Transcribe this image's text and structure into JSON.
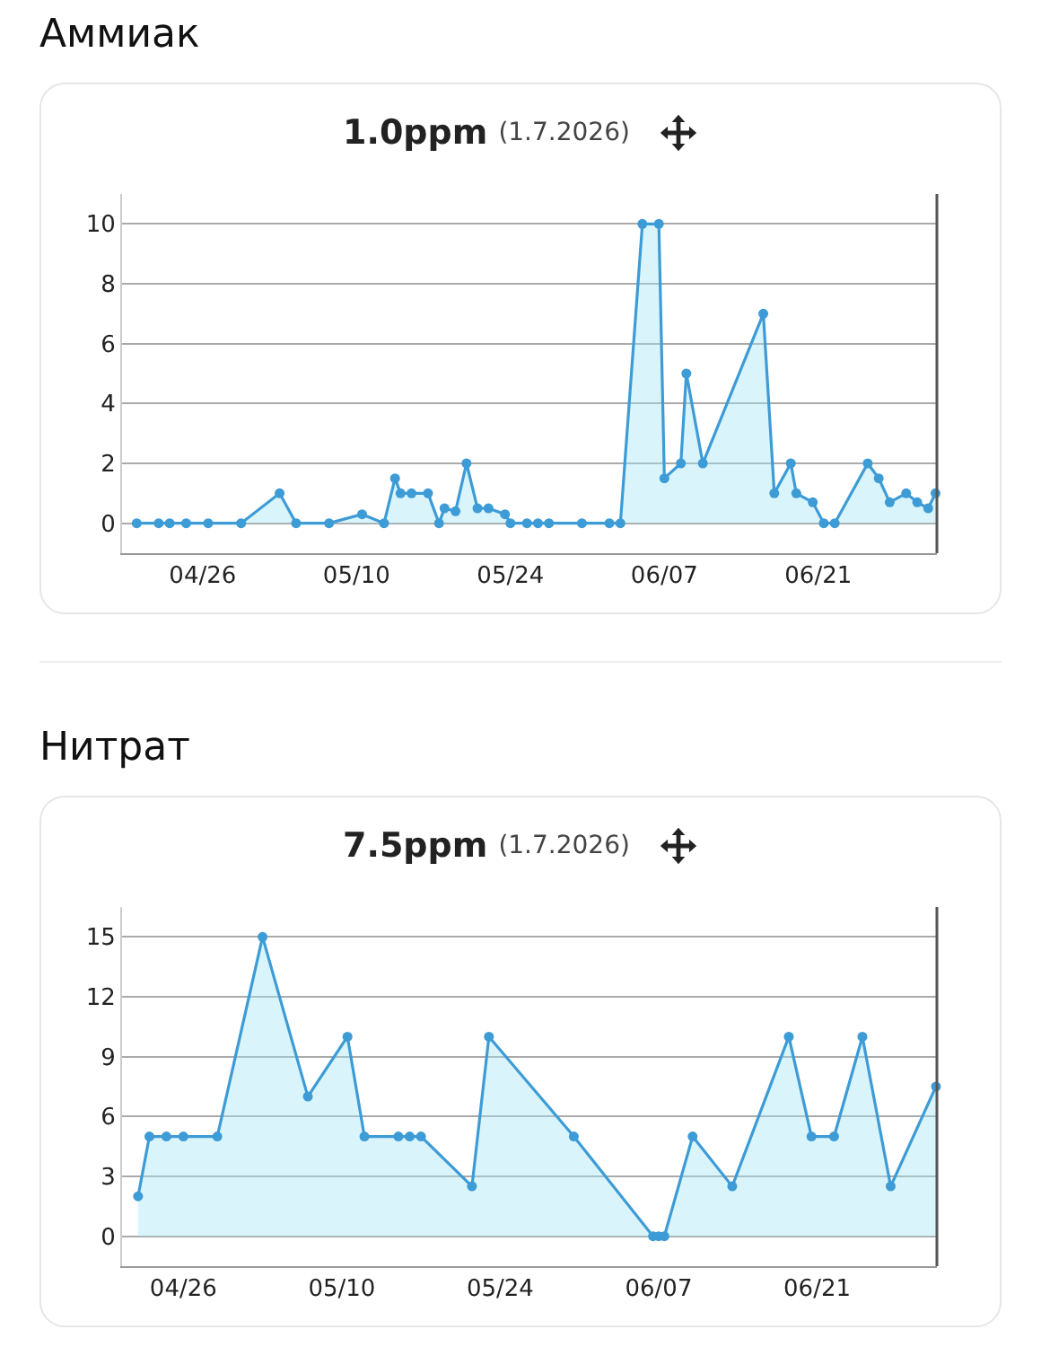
{
  "chart_data": [
    {
      "type": "area",
      "title": "Аммиак",
      "subtitle": "1.0ppm (1.7.2026)",
      "x": [
        "2026-04-20",
        "2026-04-22",
        "2026-04-23",
        "2026-04-24T12:00",
        "2026-04-26T12:00",
        "2026-04-29T12:00",
        "2026-05-03",
        "2026-05-04T12:00",
        "2026-05-07T12:00",
        "2026-05-10T12:00",
        "2026-05-12T12:00",
        "2026-05-13T12:00",
        "2026-05-14",
        "2026-05-15",
        "2026-05-16T12:00",
        "2026-05-17T12:00",
        "2026-05-18",
        "2026-05-19",
        "2026-05-20",
        "2026-05-21",
        "2026-05-22",
        "2026-05-23T12:00",
        "2026-05-24",
        "2026-05-25T12:00",
        "2026-05-26T12:00",
        "2026-05-27T12:00",
        "2026-05-30T12:00",
        "2026-06-02",
        "2026-06-03",
        "2026-06-05",
        "2026-06-06T12:00",
        "2026-06-07",
        "2026-06-08T12:00",
        "2026-06-09",
        "2026-06-10T12:00",
        "2026-06-16",
        "2026-06-17",
        "2026-06-18T12:00",
        "2026-06-19",
        "2026-06-20T12:00",
        "2026-06-21T12:00",
        "2026-06-22T12:00",
        "2026-06-25T12:00",
        "2026-06-26T12:00",
        "2026-06-27T12:00",
        "2026-06-29",
        "2026-06-30",
        "2026-07-01",
        "2026-07-01T16:00"
      ],
      "series": [
        {
          "color": "#3d9bd6",
          "values": [
            0,
            0,
            0,
            0,
            0,
            0,
            1.0,
            0,
            0,
            0.3,
            0,
            1.5,
            1.0,
            1.0,
            1.0,
            0,
            0.5,
            0.4,
            2.0,
            0.5,
            0.5,
            0.3,
            0,
            0,
            0,
            0,
            0,
            0,
            0,
            10,
            10,
            1.5,
            2.0,
            5.0,
            2.0,
            7.0,
            1.0,
            2.0,
            1.0,
            0.7,
            0,
            0,
            2.0,
            1.5,
            0.7,
            1.0,
            0.7,
            0.5,
            1.0
          ]
        }
      ],
      "xlim": [
        "2026-04-18T16:00",
        "2026-07-01T19:00"
      ],
      "xticks": [
        {
          "value": "2026-04-26",
          "label": "04/26"
        },
        {
          "value": "2026-05-10",
          "label": "05/10"
        },
        {
          "value": "2026-05-24",
          "label": "05/24"
        },
        {
          "value": "2026-06-07",
          "label": "06/07"
        },
        {
          "value": "2026-06-21",
          "label": "06/21"
        }
      ],
      "ylim": [
        -1,
        11
      ],
      "yticks": [
        0,
        2,
        4,
        6,
        8,
        10
      ],
      "grid": "y",
      "marker": "circle",
      "line_style": "solid"
    },
    {
      "type": "area",
      "title": "Нитрат",
      "subtitle": "7.5ppm (1.7.2026)",
      "x": [
        "2026-04-22",
        "2026-04-23",
        "2026-04-24T12:00",
        "2026-04-26",
        "2026-04-29",
        "2026-05-03",
        "2026-05-07",
        "2026-05-10T12:00",
        "2026-05-12",
        "2026-05-15",
        "2026-05-16",
        "2026-05-17",
        "2026-05-21T12:00",
        "2026-05-23",
        "2026-05-30T12:00",
        "2026-06-06T12:00",
        "2026-06-07",
        "2026-06-07T12:00",
        "2026-06-10",
        "2026-06-13T12:00",
        "2026-06-18T12:00",
        "2026-06-20T12:00",
        "2026-06-22T12:00",
        "2026-06-25",
        "2026-06-27T12:00",
        "2026-07-01T12:00"
      ],
      "series": [
        {
          "color": "#3d9bd6",
          "values": [
            2,
            5,
            5,
            5,
            5,
            15,
            7,
            10,
            5,
            5,
            5,
            5,
            2.5,
            10,
            5,
            0,
            0,
            0,
            5,
            2.5,
            10,
            5,
            5,
            10,
            2.5,
            7.5
          ]
        }
      ],
      "xlim": [
        "2026-04-20T14:00",
        "2026-07-01T14:00"
      ],
      "xticks": [
        {
          "value": "2026-04-26",
          "label": "04/26"
        },
        {
          "value": "2026-05-10",
          "label": "05/10"
        },
        {
          "value": "2026-05-24",
          "label": "05/24"
        },
        {
          "value": "2026-06-07",
          "label": "06/07"
        },
        {
          "value": "2026-06-21",
          "label": "06/21"
        }
      ],
      "ylim": [
        -1.5,
        16.5
      ],
      "yticks": [
        0,
        3,
        6,
        9,
        12,
        15
      ],
      "grid": "y",
      "marker": "circle",
      "line_style": "solid"
    }
  ]
}
